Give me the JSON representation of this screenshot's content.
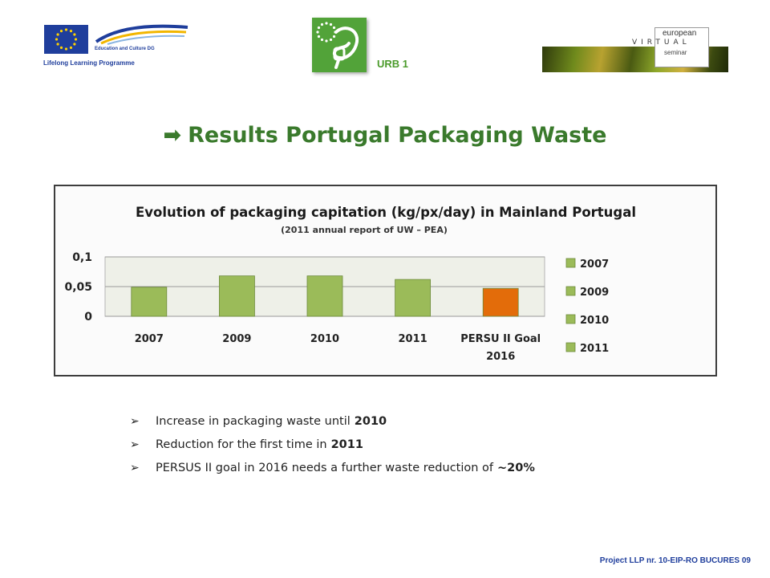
{
  "header": {
    "eu_dg_label": "Education and Culture DG",
    "eu_programme": "Lifelong Learning Programme",
    "urb_label": "URB 1",
    "evs_top": "european",
    "evs_virtual": "VIRTUAL",
    "evs_seminar": "seminar"
  },
  "title": {
    "arrow": "➡",
    "text": "Results Portugal Packaging Waste"
  },
  "chart_data": {
    "type": "bar",
    "title": "Evolution of packaging capitation (kg/px/day) in Mainland Portugal",
    "subtitle": "(2011 annual report of UW – PEA)",
    "categories": [
      "2007",
      "2009",
      "2010",
      "2011",
      "PERSU II Goal 2016"
    ],
    "category_lines": [
      [
        "2007"
      ],
      [
        "2009"
      ],
      [
        "2010"
      ],
      [
        "2011"
      ],
      [
        "PERSU II Goal",
        "2016"
      ]
    ],
    "values": [
      0.049,
      0.068,
      0.068,
      0.062,
      0.047
    ],
    "bar_colors": [
      "#9bbb59",
      "#9bbb59",
      "#9bbb59",
      "#9bbb59",
      "#e36c0a"
    ],
    "y_ticks": [
      0,
      0.05,
      0.1
    ],
    "y_tick_labels": [
      "0",
      "0,05",
      "0,1"
    ],
    "ylim": [
      0,
      0.1
    ],
    "xlabel": "",
    "ylabel": "",
    "grid": true,
    "legend_position": "right",
    "legend": [
      "2007",
      "2009",
      "2010",
      "2011"
    ],
    "legend_color": "#9bbb59"
  },
  "bullets": [
    {
      "text": "Increase in packaging waste until",
      "bold": "2010"
    },
    {
      "text": "Reduction for the first time in",
      "bold": "2011"
    },
    {
      "text": "PERSUS II goal in 2016 needs a further waste reduction of",
      "bold": "~20%"
    }
  ],
  "footer": "Project LLP nr. 10-EIP-RO BUCURES 09"
}
